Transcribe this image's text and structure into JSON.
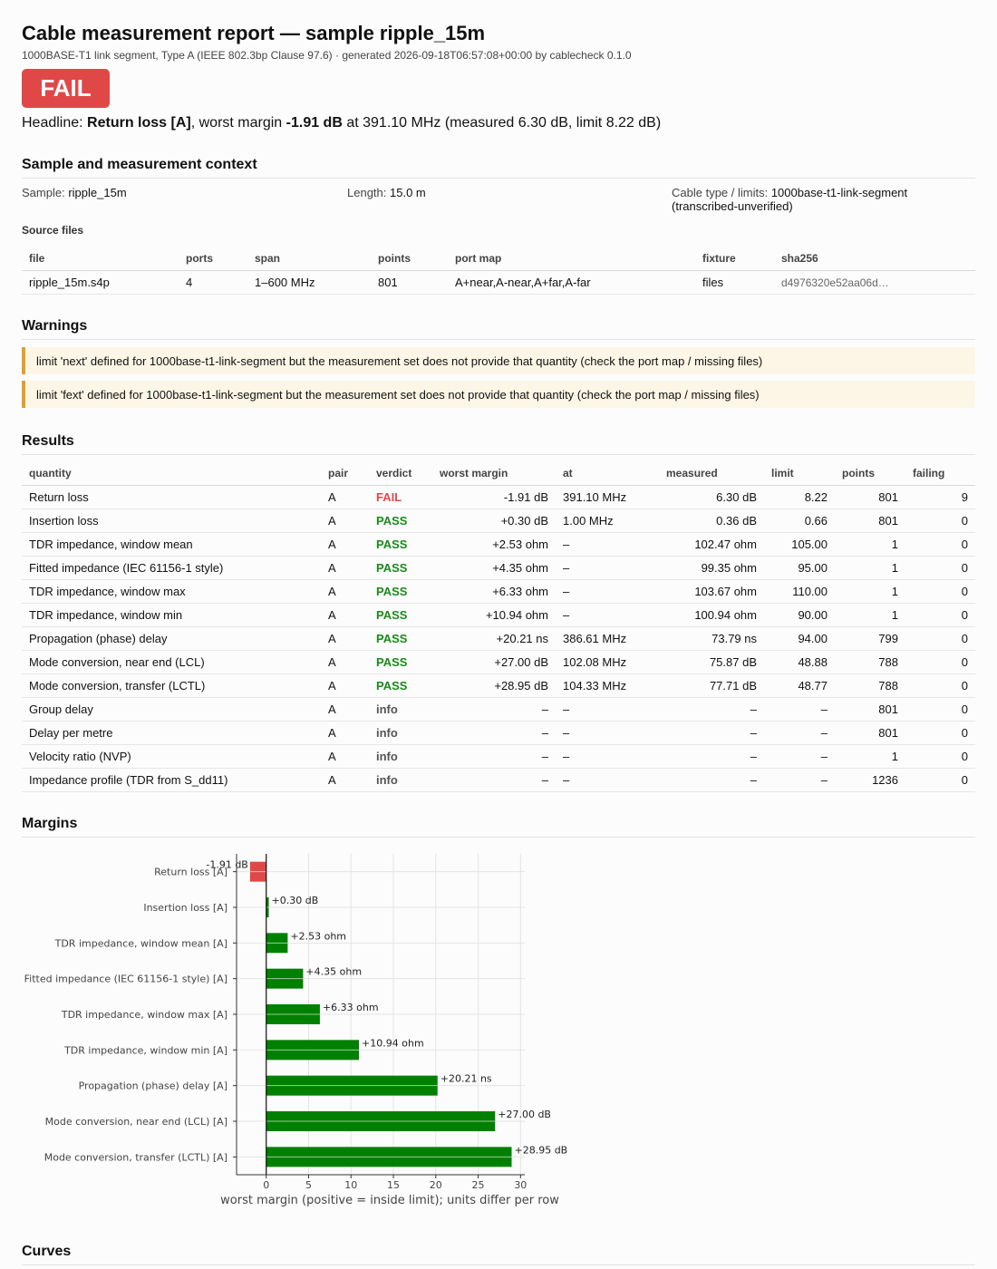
{
  "report": {
    "title": "Cable measurement report — sample ripple_15m",
    "subtitle": "1000BASE-T1 link segment, Type A (IEEE 802.3bp Clause 97.6) · generated 2026-09-18T06:57:08+00:00 by cablecheck 0.1.0",
    "status": "FAIL",
    "headline": {
      "prefix": "Headline: ",
      "quantity": "Return loss [A]",
      "mid": ", worst margin ",
      "margin": "-1.91 dB",
      "suffix": " at 391.10 MHz (measured 6.30 dB, limit 8.22 dB)"
    }
  },
  "context": {
    "heading": "Sample and measurement context",
    "sample_label": "Sample:",
    "sample_value": "ripple_15m",
    "length_label": "Length:",
    "length_value": "15.0 m",
    "cable_label": "Cable type / limits:",
    "cable_value": "1000base-t1-link-segment",
    "cable_value_2": "(transcribed-unverified)",
    "source_files_label": "Source files",
    "files_columns": [
      "file",
      "ports",
      "span",
      "points",
      "port map",
      "fixture",
      "sha256"
    ],
    "files": [
      [
        "ripple_15m.s4p",
        "4",
        "1–600 MHz",
        "801",
        "A+near,A-near,A+far,A-far",
        "files",
        "d4976320e52aa06d…"
      ]
    ]
  },
  "warnings": {
    "heading": "Warnings",
    "items": [
      "limit 'next' defined for 1000base-t1-link-segment but the measurement set does not provide that quantity (check the port map / missing files)",
      "limit 'fext' defined for 1000base-t1-link-segment but the measurement set does not provide that quantity (check the port map / missing files)"
    ]
  },
  "results": {
    "heading": "Results",
    "columns": [
      "quantity",
      "pair",
      "verdict",
      "worst margin",
      "at",
      "measured",
      "limit",
      "points",
      "failing"
    ],
    "rows": [
      [
        "Return loss",
        "A",
        "FAIL",
        "-1.91 dB",
        "391.10 MHz",
        "6.30 dB",
        "8.22",
        "801",
        "9"
      ],
      [
        "Insertion loss",
        "A",
        "PASS",
        "+0.30 dB",
        "1.00 MHz",
        "0.36 dB",
        "0.66",
        "801",
        "0"
      ],
      [
        "TDR impedance, window mean",
        "A",
        "PASS",
        "+2.53 ohm",
        "–",
        "102.47 ohm",
        "105.00",
        "1",
        "0"
      ],
      [
        "Fitted impedance (IEC 61156-1 style)",
        "A",
        "PASS",
        "+4.35 ohm",
        "–",
        "99.35 ohm",
        "95.00",
        "1",
        "0"
      ],
      [
        "TDR impedance, window max",
        "A",
        "PASS",
        "+6.33 ohm",
        "–",
        "103.67 ohm",
        "110.00",
        "1",
        "0"
      ],
      [
        "TDR impedance, window min",
        "A",
        "PASS",
        "+10.94 ohm",
        "–",
        "100.94 ohm",
        "90.00",
        "1",
        "0"
      ],
      [
        "Propagation (phase) delay",
        "A",
        "PASS",
        "+20.21 ns",
        "386.61 MHz",
        "73.79 ns",
        "94.00",
        "799",
        "0"
      ],
      [
        "Mode conversion, near end (LCL)",
        "A",
        "PASS",
        "+27.00 dB",
        "102.08 MHz",
        "75.87 dB",
        "48.88",
        "788",
        "0"
      ],
      [
        "Mode conversion, transfer (LCTL)",
        "A",
        "PASS",
        "+28.95 dB",
        "104.33 MHz",
        "77.71 dB",
        "48.77",
        "788",
        "0"
      ],
      [
        "Group delay",
        "A",
        "info",
        "–",
        "–",
        "–",
        "–",
        "801",
        "0"
      ],
      [
        "Delay per metre",
        "A",
        "info",
        "–",
        "–",
        "–",
        "–",
        "801",
        "0"
      ],
      [
        "Velocity ratio (NVP)",
        "A",
        "info",
        "–",
        "–",
        "–",
        "–",
        "1",
        "0"
      ],
      [
        "Impedance profile (TDR from S_dd11)",
        "A",
        "info",
        "–",
        "–",
        "–",
        "–",
        "1236",
        "0"
      ]
    ]
  },
  "margins": {
    "heading": "Margins",
    "chart_data": {
      "type": "bar",
      "orientation": "horizontal",
      "categories": [
        "Return loss [A]",
        "Insertion loss [A]",
        "TDR impedance, window mean [A]",
        "Fitted impedance (IEC 61156-1 style) [A]",
        "TDR impedance, window max [A]",
        "TDR impedance, window min [A]",
        "Propagation (phase) delay [A]",
        "Mode conversion, near end (LCL) [A]",
        "Mode conversion, transfer (LCTL) [A]"
      ],
      "values": [
        -1.91,
        0.3,
        2.53,
        4.35,
        6.33,
        10.94,
        20.21,
        27.0,
        28.95
      ],
      "value_labels": [
        "-1.91 dB",
        "+0.30 dB",
        "+2.53 ohm",
        "+4.35 ohm",
        "+6.33 ohm",
        "+10.94 ohm",
        "+20.21 ns",
        "+27.00 dB",
        "+28.95 dB"
      ],
      "xlabel": "worst margin (positive = inside limit); units differ per row",
      "xlim": [
        -3.5,
        30.5
      ],
      "xticks": [
        0,
        5,
        10,
        15,
        20,
        25,
        30
      ],
      "colors": {
        "negative": "#e04848",
        "positive": "#008000"
      },
      "grid": true
    }
  },
  "curves": {
    "heading": "Curves"
  }
}
